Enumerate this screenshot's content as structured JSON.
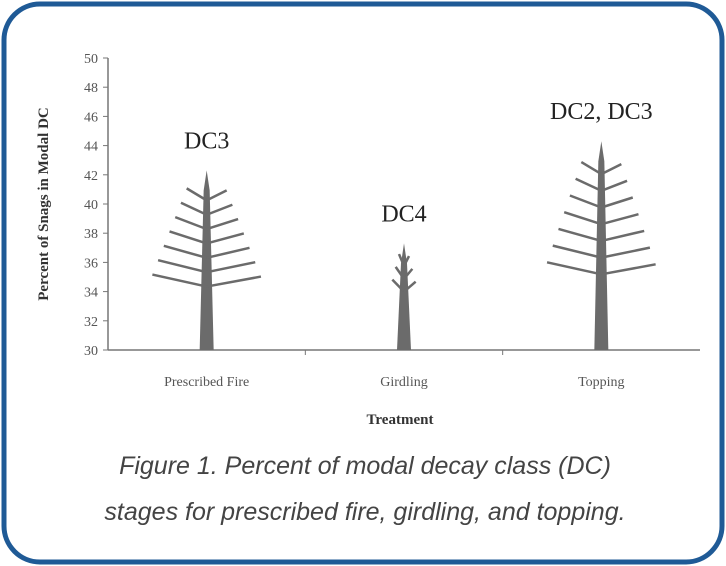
{
  "chart_data": {
    "type": "bar",
    "caption": [
      "Figure 1. Percent of modal decay class (DC)",
      "stages for prescribed fire, girdling, and topping."
    ],
    "x_label": "Treatment",
    "y_label": "Percent of Snags in Modal DC",
    "categories": [
      "Prescribed Fire",
      "Girdling",
      "Topping"
    ],
    "values": [
      42.3,
      37.3,
      44.3
    ],
    "annotations": [
      "DC3",
      "DC4",
      "DC2, DC3"
    ],
    "color": "#6b6b6b",
    "ylim": [
      30,
      50
    ],
    "yticks": [
      30,
      32,
      34,
      36,
      38,
      40,
      42,
      44,
      46,
      48,
      50
    ]
  }
}
